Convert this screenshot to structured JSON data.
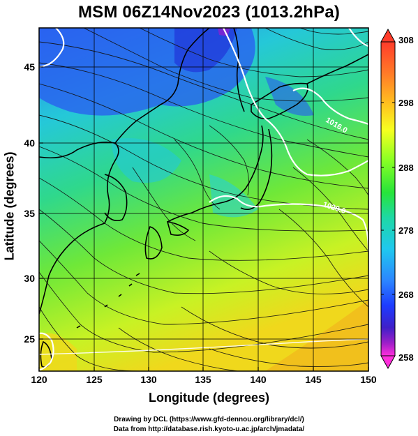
{
  "title": "MSM 06Z14Nov2023 (1013.2hPa)",
  "axes": {
    "xlabel": "Longitude (degrees)",
    "ylabel": "Latitude  (degrees)",
    "x_ticks": [
      "120",
      "125",
      "130",
      "135",
      "140",
      "145",
      "150"
    ],
    "y_ticks": [
      "25",
      "30",
      "35",
      "40",
      "45"
    ]
  },
  "colorbar": {
    "ticks": [
      "308",
      "298",
      "288",
      "278",
      "268",
      "258"
    ],
    "colors": [
      "#ff3c2a",
      "#ff7a28",
      "#ffc31f",
      "#f7ff20",
      "#86ff24",
      "#27e43a",
      "#1ed8a5",
      "#1fc8ee",
      "#2c86ff",
      "#1d3cff",
      "#3f1fc8",
      "#9e1fc8",
      "#ff2edc"
    ]
  },
  "contours": {
    "labels": [
      "1016.0",
      "1020.0"
    ]
  },
  "credits": {
    "line1": "Drawing by DCL (https://www.gfd-dennou.org/library/dcl/)",
    "line2": "Data from http://database.rish.kyoto-u.ac.jp/arch/jmadata/"
  }
}
